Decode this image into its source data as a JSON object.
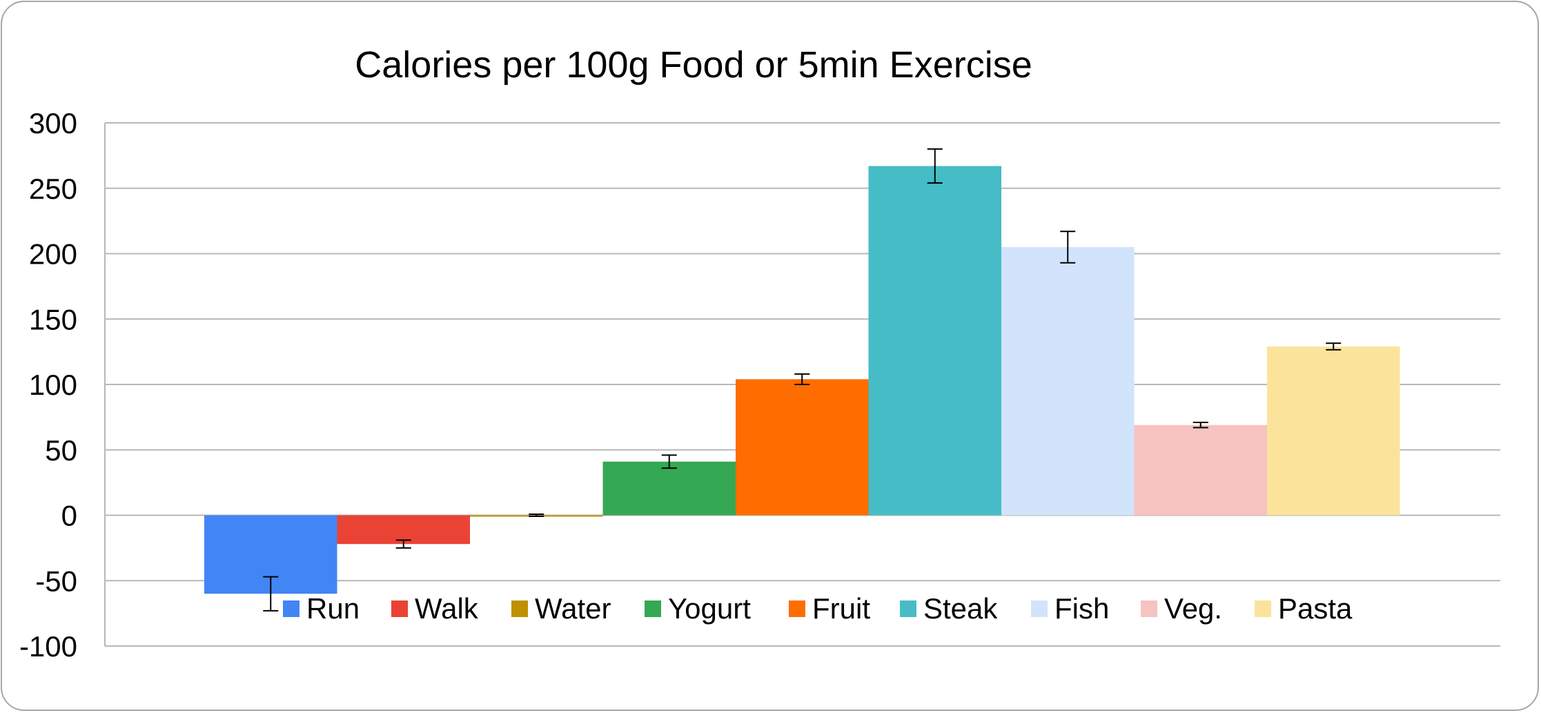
{
  "chart_data": {
    "type": "bar",
    "title": "Calories per 100g Food or 5min Exercise",
    "xlabel": "",
    "ylabel": "",
    "ylim": [
      -100,
      300
    ],
    "yticks": [
      300,
      250,
      200,
      150,
      100,
      50,
      0,
      -50,
      -100
    ],
    "grid": true,
    "legend_position": "bottom",
    "series": [
      {
        "name": "Run",
        "value": -60,
        "error": 13,
        "color": "#4285f4"
      },
      {
        "name": "Walk",
        "value": -22,
        "error": 3,
        "color": "#ea4335"
      },
      {
        "name": "Water",
        "value": 0,
        "error": 0.8,
        "color": "#bf9000"
      },
      {
        "name": "Yogurt",
        "value": 41,
        "error": 5,
        "color": "#34a853"
      },
      {
        "name": "Fruit",
        "value": 104,
        "error": 4,
        "color": "#ff6d01"
      },
      {
        "name": "Steak",
        "value": 267,
        "error": 13,
        "color": "#46bdc6"
      },
      {
        "name": "Fish",
        "value": 205,
        "error": 12,
        "color": "#d2e3fc"
      },
      {
        "name": "Veg.",
        "value": 69,
        "error": 2,
        "color": "#f6c3c0"
      },
      {
        "name": "Pasta",
        "value": 129,
        "error": 2.5,
        "color": "#fce39c"
      }
    ]
  }
}
